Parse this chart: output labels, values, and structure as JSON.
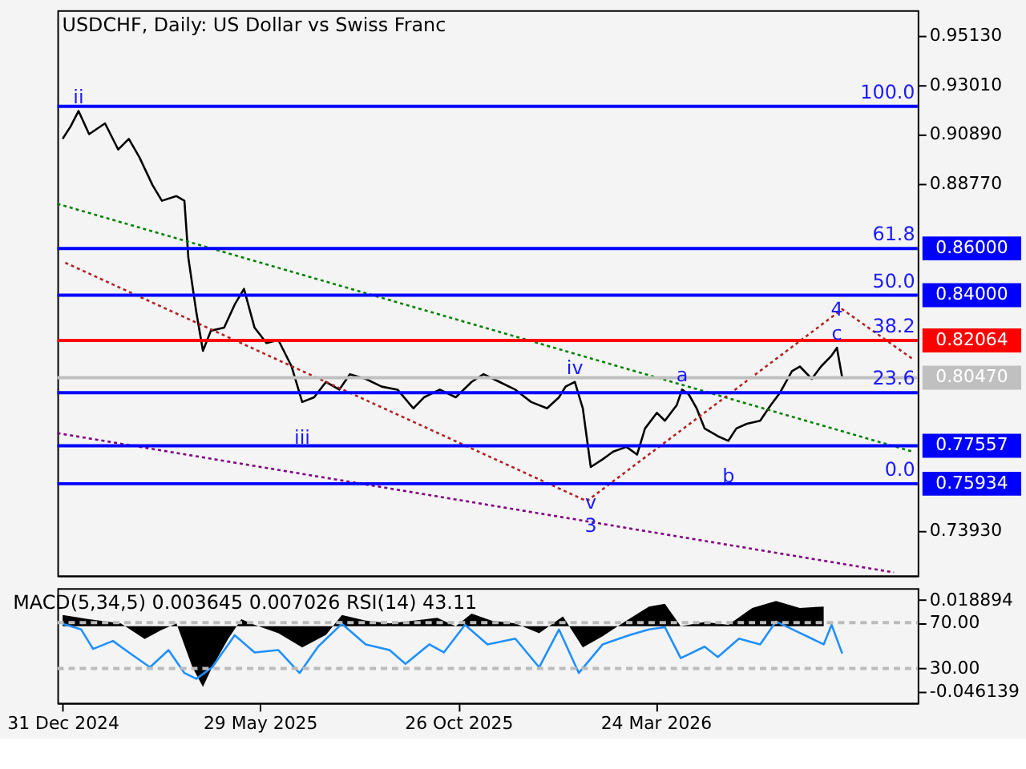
{
  "chart_data": [
    {
      "type": "line",
      "title": "USDCHF, Daily:  US Dollar vs Swiss Franc",
      "x": [
        "2024-12-31",
        "2025-01-06",
        "2025-01-12",
        "2025-01-20",
        "2025-02-01",
        "2025-02-11",
        "2025-02-19",
        "2025-02-27",
        "2025-03-09",
        "2025-03-16",
        "2025-03-27",
        "2025-04-02",
        "2025-04-05",
        "2025-04-11",
        "2025-04-16",
        "2025-04-22",
        "2025-05-02",
        "2025-05-10",
        "2025-05-17",
        "2025-05-25",
        "2025-06-03",
        "2025-06-12",
        "2025-06-22",
        "2025-06-30",
        "2025-07-09",
        "2025-07-18",
        "2025-07-28",
        "2025-08-05",
        "2025-08-17",
        "2025-08-29",
        "2025-09-10",
        "2025-09-22",
        "2025-09-30",
        "2025-10-12",
        "2025-10-24",
        "2025-11-05",
        "2025-11-14",
        "2025-11-26",
        "2025-12-08",
        "2025-12-20",
        "2026-01-01",
        "2026-01-10",
        "2026-01-15",
        "2026-01-22",
        "2026-01-28",
        "2026-02-03",
        "2026-02-12",
        "2026-02-20",
        "2026-03-02",
        "2026-03-10",
        "2026-03-16",
        "2026-03-25",
        "2026-03-31",
        "2026-04-09",
        "2026-04-13",
        "2026-04-18",
        "2026-04-24",
        "2026-04-30",
        "2026-05-10",
        "2026-05-18",
        "2026-05-24",
        "2026-06-01",
        "2026-06-11",
        "2026-06-19",
        "2026-06-26",
        "2026-07-05",
        "2026-07-11",
        "2026-07-20",
        "2026-07-27",
        "2026-08-04",
        "2026-08-08",
        "2026-08-12"
      ],
      "series": [
        {
          "color": "#000000",
          "values": [
            0.9069,
            0.9122,
            0.9188,
            0.9089,
            0.9135,
            0.9023,
            0.9069,
            0.899,
            0.887,
            0.8804,
            0.8824,
            0.8804,
            0.8559,
            0.8327,
            0.8162,
            0.8248,
            0.8261,
            0.836,
            0.8427,
            0.8261,
            0.8195,
            0.8208,
            0.8095,
            0.7943,
            0.7963,
            0.8029,
            0.7996,
            0.8062,
            0.8042,
            0.8009,
            0.7996,
            0.7916,
            0.7963,
            0.7996,
            0.7963,
            0.8029,
            0.8062,
            0.8029,
            0.7996,
            0.7943,
            0.7916,
            0.7963,
            0.8009,
            0.8029,
            0.7916,
            0.7665,
            0.7698,
            0.7731,
            0.7751,
            0.7718,
            0.783,
            0.7897,
            0.7863,
            0.793,
            0.7996,
            0.7976,
            0.7916,
            0.783,
            0.7797,
            0.7777,
            0.783,
            0.785,
            0.7863,
            0.793,
            0.7983,
            0.8075,
            0.8095,
            0.8042,
            0.8095,
            0.8142,
            0.8175,
            0.8047
          ]
        },
        {
          "color": "#008000",
          "line_style": "dotted",
          "x": [
            "2024-12-27",
            "2026-10-04"
          ],
          "values": [
            0.8791,
            0.7731
          ]
        },
        {
          "color": "#b22222",
          "line_style": "dotted",
          "x": [
            "2025-01-02",
            "2026-01-31",
            "2026-08-12",
            "2026-10-04"
          ],
          "values": [
            0.8539,
            0.7519,
            0.834,
            0.8128
          ]
        },
        {
          "color": "#800080",
          "line_style": "dotted",
          "x": [
            "2024-12-27",
            "2026-09-20"
          ],
          "values": [
            0.781,
            0.7214
          ]
        }
      ],
      "xlim": [
        "2024-12-27",
        "2026-10-08"
      ],
      "ylim": [
        0.7201,
        0.9619
      ],
      "yticks": [
        {
          "value": 0.9513,
          "label": "0.95130"
        },
        {
          "value": 0.9301,
          "label": "0.93010"
        },
        {
          "value": 0.9089,
          "label": "0.90890"
        },
        {
          "value": 0.8877,
          "label": "0.88770"
        },
        {
          "value": 0.7393,
          "label": "0.73930"
        }
      ],
      "tick_labels": "y",
      "ref_lines": [
        {
          "axis": "y",
          "value": 0.9208,
          "label": null,
          "color": "#0000ff"
        },
        {
          "axis": "y",
          "value": 0.86,
          "label": "0.86000",
          "color": "#0000ff"
        },
        {
          "axis": "y",
          "value": 0.84,
          "label": "0.84000",
          "color": "#0000ff"
        },
        {
          "axis": "y",
          "value": 0.82064,
          "label": "0.82064",
          "color": "#ff0000"
        },
        {
          "axis": "y",
          "value": 0.8047,
          "label": "0.80470",
          "color": "#c0c0c0"
        },
        {
          "axis": "y",
          "value": 0.7983,
          "label": null,
          "color": "#0000ff"
        },
        {
          "axis": "y",
          "value": 0.77557,
          "label": "0.77557",
          "color": "#0000ff"
        },
        {
          "axis": "y",
          "value": 0.75934,
          "label": "0.75934",
          "color": "#0000ff"
        }
      ],
      "annotations": [
        {
          "text": "100.0",
          "x": "2026-10-06",
          "y": 0.9208
        },
        {
          "text": "61.8",
          "x": "2026-10-06",
          "y": 0.86
        },
        {
          "text": "50.0",
          "x": "2026-10-06",
          "y": 0.84
        },
        {
          "text": "38.2",
          "x": "2026-10-06",
          "y": 0.82064
        },
        {
          "text": "23.6",
          "x": "2026-10-06",
          "y": 0.7983
        },
        {
          "text": "0.0",
          "x": "2026-10-06",
          "y": 0.75934
        },
        {
          "text": "ii",
          "x": "2025-01-12",
          "y": 0.9188
        },
        {
          "text": "iii",
          "x": "2025-06-30",
          "y": 0.7943
        },
        {
          "text": "iv",
          "x": "2026-01-22",
          "y": 0.8029
        },
        {
          "text": "v",
          "x": "2026-02-03",
          "y": 0.7665
        },
        {
          "text": "3",
          "x": "2026-02-03",
          "y": 0.7665
        },
        {
          "text": "a",
          "x": "2026-04-13",
          "y": 0.7996
        },
        {
          "text": "b",
          "x": "2026-05-18",
          "y": 0.7777
        },
        {
          "text": "c",
          "x": "2026-08-08",
          "y": 0.8175
        },
        {
          "text": "4",
          "x": "2026-08-08",
          "y": 0.8175
        }
      ]
    },
    {
      "type": "area",
      "title": "MACD(5,34,5) 0.003645 0.007026 RSI(14) 43.11",
      "series": [
        {
          "color": "#000000",
          "x": [
            "2024-12-31",
            "2025-01-20",
            "2025-02-13",
            "2025-03-03",
            "2025-03-15",
            "2025-03-27",
            "2025-04-08",
            "2025-04-16",
            "2025-04-23",
            "2025-05-05",
            "2025-05-15",
            "2025-05-25",
            "2025-06-12",
            "2025-06-30",
            "2025-07-18",
            "2025-07-30",
            "2025-08-17",
            "2025-09-04",
            "2025-10-10",
            "2025-10-24",
            "2025-11-05",
            "2025-11-20",
            "2025-12-08",
            "2025-12-26",
            "2026-01-13",
            "2026-01-28",
            "2026-02-12",
            "2026-03-02",
            "2026-03-19",
            "2026-03-31",
            "2026-04-12",
            "2026-04-30",
            "2026-05-18",
            "2026-06-05",
            "2026-06-23",
            "2026-07-11",
            "2026-07-29"
          ],
          "values": [
            0.008,
            0.005,
            0.002,
            -0.009,
            -0.003,
            0.002,
            -0.029,
            -0.043,
            -0.029,
            -0.009,
            0.005,
            0.001,
            -0.005,
            -0.015,
            -0.006,
            0.008,
            0.004,
            0.002,
            0.006,
            0.0,
            0.009,
            0.004,
            0.002,
            -0.005,
            0.007,
            -0.015,
            -0.007,
            0.004,
            0.014,
            0.016,
            0.0,
            0.003,
            0.001,
            0.013,
            0.018,
            0.013,
            0.014
          ]
        },
        {
          "type": "line",
          "axis": "y2",
          "color": "#1e90ff",
          "x": [
            "2024-12-31",
            "2025-01-14",
            "2025-01-23",
            "2025-02-07",
            "2025-02-19",
            "2025-03-07",
            "2025-03-21",
            "2025-04-02",
            "2025-04-11",
            "2025-04-23",
            "2025-05-10",
            "2025-05-25",
            "2025-06-12",
            "2025-06-28",
            "2025-07-12",
            "2025-07-30",
            "2025-08-17",
            "2025-09-04",
            "2025-09-16",
            "2025-10-04",
            "2025-10-15",
            "2025-10-31",
            "2025-11-17",
            "2025-12-08",
            "2025-12-26",
            "2026-01-10",
            "2026-01-25",
            "2026-02-12",
            "2026-03-04",
            "2026-03-19",
            "2026-03-31",
            "2026-04-12",
            "2026-04-30",
            "2026-05-10",
            "2026-05-26",
            "2026-06-11",
            "2026-06-23",
            "2026-07-11",
            "2026-07-29",
            "2026-08-04",
            "2026-08-12"
          ],
          "values": [
            69,
            64,
            47,
            54,
            44,
            31,
            46,
            26,
            21,
            31,
            59,
            44,
            46,
            26,
            49,
            69,
            51,
            46,
            34,
            51,
            44,
            68,
            51,
            56,
            31,
            64,
            26,
            51,
            59,
            64,
            66,
            39,
            49,
            40,
            56,
            51,
            71,
            61,
            51,
            68,
            43
          ]
        }
      ],
      "xlim": [
        "2024-12-27",
        "2026-10-08"
      ],
      "xticks": [
        {
          "value": "2024-12-31",
          "label": "31 Dec 2024"
        },
        {
          "value": "2025-05-29",
          "label": "29 May 2025"
        },
        {
          "value": "2025-10-26",
          "label": "26 Oct 2025"
        },
        {
          "value": "2026-03-24",
          "label": "24 Mar 2026"
        }
      ],
      "ylim": [
        -0.0543,
        0.027
      ],
      "yticks": [
        0.018894,
        -0.046139
      ],
      "y2lim": [
        0,
        100
      ],
      "y2ticks": [
        {
          "value": 70,
          "label": "70.00"
        },
        {
          "value": 30,
          "label": "30.00"
        }
      ],
      "ref_lines": [
        {
          "axis": "y2",
          "value": 70,
          "label": null,
          "color": "#bbbbbb",
          "line_style": "dashed"
        },
        {
          "axis": "y2",
          "value": 30,
          "label": null,
          "color": "#bbbbbb",
          "line_style": "dashed"
        }
      ]
    }
  ]
}
